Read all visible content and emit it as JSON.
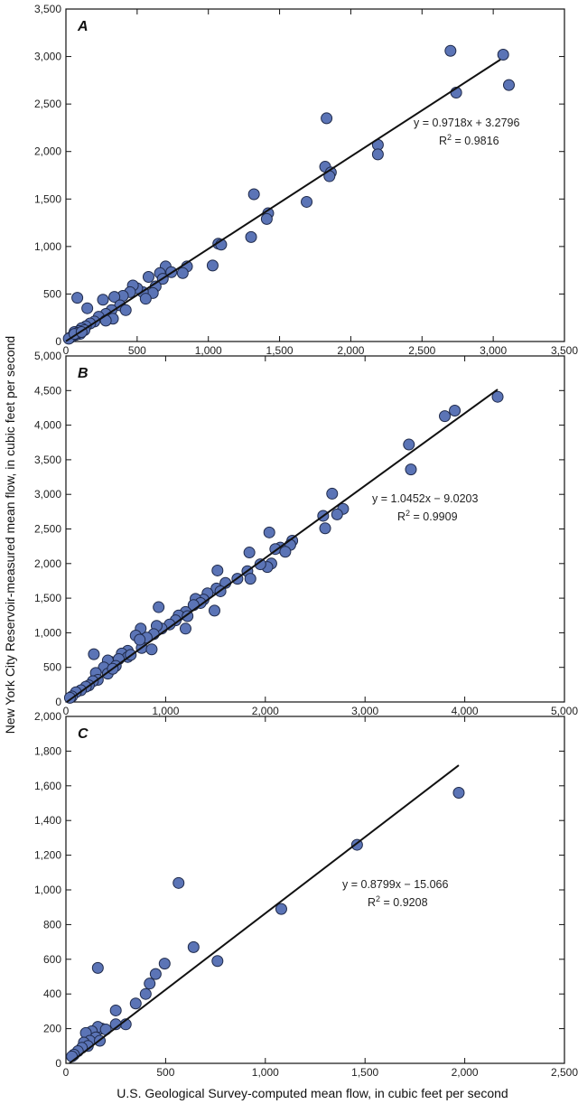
{
  "ylabel": "New York City Reservoir-measured mean flow, in cubic feet per second",
  "xlabel": "U.S. Geological Survey-computed mean flow, in cubic feet per second",
  "chart_data": [
    {
      "type": "scatter",
      "panel_label": "A",
      "xlim": [
        0,
        3500
      ],
      "ylim": [
        0,
        3500
      ],
      "xticks": [
        0,
        500,
        1000,
        1500,
        2000,
        2500,
        3000,
        3500
      ],
      "yticks": [
        0,
        500,
        1000,
        1500,
        2000,
        2500,
        3000,
        3500
      ],
      "x_tick_labels": [
        "0",
        "500",
        "1,000",
        "1,500",
        "2,000",
        "2,500",
        "3,000",
        "3,500"
      ],
      "y_tick_labels": [
        "0",
        "500",
        "1,000",
        "1,500",
        "2,000",
        "2,500",
        "3,000",
        "3,500"
      ],
      "equation": "y = 0.9718x + 3.2796",
      "r2_label": "R",
      "r2_sup": "2",
      "r2_value": " = 0.9816",
      "trendline": {
        "slope": 0.9718,
        "intercept": 3.2796,
        "x_range": [
          0,
          3050
        ]
      },
      "points": [
        [
          3070,
          3020
        ],
        [
          2700,
          3060
        ],
        [
          2740,
          2620
        ],
        [
          3110,
          2700
        ],
        [
          1830,
          2350
        ],
        [
          2190,
          2070
        ],
        [
          2190,
          1970
        ],
        [
          1820,
          1840
        ],
        [
          1860,
          1780
        ],
        [
          1850,
          1740
        ],
        [
          1320,
          1550
        ],
        [
          1690,
          1470
        ],
        [
          1420,
          1350
        ],
        [
          1410,
          1290
        ],
        [
          1300,
          1100
        ],
        [
          1070,
          1030
        ],
        [
          1090,
          1020
        ],
        [
          1030,
          800
        ],
        [
          850,
          790
        ],
        [
          700,
          790
        ],
        [
          740,
          730
        ],
        [
          820,
          720
        ],
        [
          660,
          720
        ],
        [
          580,
          680
        ],
        [
          680,
          660
        ],
        [
          630,
          580
        ],
        [
          610,
          510
        ],
        [
          540,
          520
        ],
        [
          500,
          560
        ],
        [
          470,
          590
        ],
        [
          560,
          450
        ],
        [
          450,
          520
        ],
        [
          400,
          480
        ],
        [
          340,
          470
        ],
        [
          260,
          440
        ],
        [
          80,
          460
        ],
        [
          380,
          380
        ],
        [
          420,
          330
        ],
        [
          320,
          330
        ],
        [
          280,
          290
        ],
        [
          230,
          260
        ],
        [
          330,
          240
        ],
        [
          280,
          220
        ],
        [
          150,
          350
        ],
        [
          200,
          210
        ],
        [
          170,
          190
        ],
        [
          140,
          160
        ],
        [
          110,
          140
        ],
        [
          90,
          110
        ],
        [
          60,
          100
        ],
        [
          130,
          120
        ],
        [
          100,
          80
        ],
        [
          70,
          70
        ],
        [
          50,
          60
        ],
        [
          40,
          50
        ],
        [
          30,
          40
        ],
        [
          20,
          30
        ],
        [
          80,
          90
        ],
        [
          60,
          80
        ],
        [
          110,
          100
        ]
      ]
    },
    {
      "type": "scatter",
      "panel_label": "B",
      "xlim": [
        0,
        5000
      ],
      "ylim": [
        0,
        5000
      ],
      "xticks": [
        0,
        1000,
        2000,
        3000,
        4000,
        5000
      ],
      "yticks": [
        0,
        500,
        1000,
        1500,
        2000,
        2500,
        3000,
        3500,
        4000,
        4500,
        5000
      ],
      "x_tick_labels": [
        "0",
        "1,000",
        "2,000",
        "3,000",
        "4,000",
        "5,000"
      ],
      "y_tick_labels": [
        "0",
        "500",
        "1,000",
        "1,500",
        "2,000",
        "2,500",
        "3,000",
        "3,500",
        "4,000",
        "4,500",
        "5,000"
      ],
      "equation": "y = 1.0452x − 9.0203",
      "r2_label": "R",
      "r2_sup": "2",
      "r2_value": " = 0.9909",
      "trendline": {
        "slope": 1.0452,
        "intercept": -9.0203,
        "x_range": [
          0,
          4330
        ]
      },
      "points": [
        [
          4330,
          4410
        ],
        [
          3900,
          4210
        ],
        [
          3800,
          4130
        ],
        [
          3440,
          3720
        ],
        [
          3460,
          3360
        ],
        [
          2670,
          3010
        ],
        [
          2780,
          2790
        ],
        [
          2720,
          2710
        ],
        [
          2580,
          2690
        ],
        [
          2600,
          2510
        ],
        [
          2040,
          2450
        ],
        [
          2270,
          2330
        ],
        [
          2250,
          2270
        ],
        [
          2150,
          2230
        ],
        [
          2100,
          2210
        ],
        [
          2200,
          2170
        ],
        [
          1840,
          2160
        ],
        [
          2060,
          2000
        ],
        [
          2020,
          1950
        ],
        [
          1950,
          1990
        ],
        [
          1820,
          1890
        ],
        [
          1720,
          1780
        ],
        [
          1850,
          1780
        ],
        [
          1520,
          1900
        ],
        [
          1600,
          1720
        ],
        [
          1510,
          1640
        ],
        [
          1550,
          1600
        ],
        [
          1420,
          1570
        ],
        [
          1380,
          1480
        ],
        [
          1300,
          1490
        ],
        [
          1350,
          1430
        ],
        [
          1280,
          1400
        ],
        [
          1490,
          1320
        ],
        [
          1200,
          1300
        ],
        [
          1130,
          1250
        ],
        [
          1220,
          1240
        ],
        [
          1200,
          1060
        ],
        [
          1100,
          1180
        ],
        [
          1040,
          1120
        ],
        [
          930,
          1370
        ],
        [
          960,
          1060
        ],
        [
          910,
          1100
        ],
        [
          880,
          980
        ],
        [
          750,
          1060
        ],
        [
          810,
          930
        ],
        [
          700,
          960
        ],
        [
          760,
          780
        ],
        [
          860,
          760
        ],
        [
          740,
          900
        ],
        [
          620,
          740
        ],
        [
          560,
          700
        ],
        [
          620,
          650
        ],
        [
          280,
          690
        ],
        [
          450,
          580
        ],
        [
          530,
          620
        ],
        [
          420,
          600
        ],
        [
          380,
          500
        ],
        [
          300,
          420
        ],
        [
          420,
          410
        ],
        [
          320,
          320
        ],
        [
          270,
          300
        ],
        [
          230,
          240
        ],
        [
          200,
          220
        ],
        [
          150,
          170
        ],
        [
          100,
          140
        ],
        [
          60,
          80
        ],
        [
          40,
          60
        ],
        [
          500,
          520
        ],
        [
          470,
          480
        ],
        [
          650,
          680
        ]
      ]
    },
    {
      "type": "scatter",
      "panel_label": "C",
      "xlim": [
        0,
        2500
      ],
      "ylim": [
        0,
        2000
      ],
      "xticks": [
        0,
        500,
        1000,
        1500,
        2000,
        2500
      ],
      "yticks": [
        0,
        200,
        400,
        600,
        800,
        1000,
        1200,
        1400,
        1600,
        1800,
        2000
      ],
      "x_tick_labels": [
        "0",
        "500",
        "1,000",
        "1,500",
        "2,000",
        "2,500"
      ],
      "y_tick_labels": [
        "0",
        "200",
        "400",
        "600",
        "800",
        "1,000",
        "1,200",
        "1,400",
        "1,600",
        "1,800",
        "2,000"
      ],
      "equation": "y = 0.8799x − 15.066",
      "r2_label": "R",
      "r2_sup": "2",
      "r2_value": " = 0.9208",
      "trendline": {
        "slope": 0.8799,
        "intercept": -15.066,
        "x_range": [
          0,
          1970
        ]
      },
      "points": [
        [
          1970,
          1560
        ],
        [
          1460,
          1260
        ],
        [
          1080,
          890
        ],
        [
          565,
          1040
        ],
        [
          640,
          670
        ],
        [
          760,
          590
        ],
        [
          495,
          575
        ],
        [
          160,
          550
        ],
        [
          450,
          515
        ],
        [
          420,
          460
        ],
        [
          400,
          400
        ],
        [
          350,
          345
        ],
        [
          250,
          305
        ],
        [
          300,
          225
        ],
        [
          250,
          225
        ],
        [
          180,
          200
        ],
        [
          160,
          210
        ],
        [
          130,
          185
        ],
        [
          100,
          175
        ],
        [
          150,
          150
        ],
        [
          120,
          130
        ],
        [
          90,
          120
        ],
        [
          170,
          130
        ],
        [
          110,
          100
        ],
        [
          80,
          90
        ],
        [
          60,
          70
        ],
        [
          40,
          50
        ],
        [
          30,
          40
        ],
        [
          200,
          195
        ]
      ]
    }
  ]
}
